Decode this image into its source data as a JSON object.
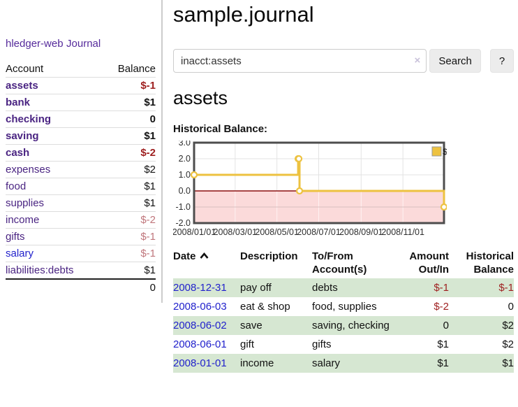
{
  "app": {
    "brand": "hledger-web",
    "nav_journal": "Journal"
  },
  "sidebar": {
    "accounts_header": {
      "account": "Account",
      "balance": "Balance"
    },
    "accounts": [
      {
        "name": "assets",
        "level": 0,
        "bold": true,
        "balance": "$-1",
        "tone": "neg"
      },
      {
        "name": "bank",
        "level": 1,
        "bold": true,
        "balance": "$1",
        "tone": ""
      },
      {
        "name": "checking",
        "level": 2,
        "bold": true,
        "balance": "0",
        "tone": ""
      },
      {
        "name": "saving",
        "level": 2,
        "bold": true,
        "balance": "$1",
        "tone": ""
      },
      {
        "name": "cash",
        "level": 1,
        "bold": true,
        "balance": "$-2",
        "tone": "neg"
      },
      {
        "name": "expenses",
        "level": 0,
        "bold": false,
        "balance": "$2",
        "tone": ""
      },
      {
        "name": "food",
        "level": 1,
        "bold": false,
        "balance": "$1",
        "tone": ""
      },
      {
        "name": "supplies",
        "level": 1,
        "bold": false,
        "balance": "$1",
        "tone": ""
      },
      {
        "name": "income",
        "level": 0,
        "bold": false,
        "balance": "$-2",
        "tone": "negsoft"
      },
      {
        "name": "gifts",
        "level": 1,
        "bold": false,
        "balance": "$-1",
        "tone": "negsoft"
      },
      {
        "name": "salary",
        "level": 1,
        "bold": false,
        "balance": "$-1",
        "tone": "negsoft",
        "link": "blue"
      },
      {
        "name": "liabilities:debts",
        "level": 0,
        "bold": false,
        "balance": "$1",
        "tone": ""
      }
    ],
    "total": "0"
  },
  "header": {
    "title": "sample.journal"
  },
  "search": {
    "value": "inacct:assets",
    "clear_icon": "×",
    "button": "Search",
    "help": "?"
  },
  "account_page": {
    "title": "assets",
    "chart_label": "Historical Balance:"
  },
  "chart_data": {
    "type": "line",
    "step": "after",
    "title": "Historical Balance",
    "series": [
      {
        "name": "$",
        "color": "#edc240",
        "points": [
          [
            "2008-01-01",
            1
          ],
          [
            "2008-06-01",
            2
          ],
          [
            "2008-06-02",
            2
          ],
          [
            "2008-06-03",
            0
          ],
          [
            "2008-12-31",
            -1
          ]
        ]
      }
    ],
    "x_min": "2008-01-01",
    "x_max": "2008-12-31",
    "x_ticks": [
      "2008/01/01",
      "2008/03/01",
      "2008/05/01",
      "2008/07/01",
      "2008/09/01",
      "2008/11/01"
    ],
    "y_ticks": [
      "3.0",
      "2.0",
      "1.0",
      "0.0",
      "-1.0",
      "-2.0"
    ],
    "ylim": [
      -2,
      3
    ],
    "grid": true,
    "negative_fill": "#fbdada",
    "zero_line_color": "#8b1010",
    "legend": {
      "label": "$",
      "position": "top-right"
    }
  },
  "register": {
    "headers": [
      "Date",
      "Description",
      "To/From Account(s)",
      "Amount Out/In",
      "Historical Balance"
    ],
    "rows": [
      {
        "date": "2008-12-31",
        "description": "pay off",
        "accounts": "debts",
        "amount": "$-1",
        "amount_tone": "neg",
        "balance": "$-1",
        "balance_tone": "neg"
      },
      {
        "date": "2008-06-03",
        "description": "eat & shop",
        "accounts": "food, supplies",
        "amount": "$-2",
        "amount_tone": "neg",
        "balance": "0",
        "balance_tone": ""
      },
      {
        "date": "2008-06-02",
        "description": "save",
        "accounts": "saving, checking",
        "amount": "0",
        "amount_tone": "",
        "balance": "$2",
        "balance_tone": ""
      },
      {
        "date": "2008-06-01",
        "description": "gift",
        "accounts": "gifts",
        "amount": "$1",
        "amount_tone": "",
        "balance": "$2",
        "balance_tone": ""
      },
      {
        "date": "2008-01-01",
        "description": "income",
        "accounts": "salary",
        "amount": "$1",
        "amount_tone": "",
        "balance": "$1",
        "balance_tone": ""
      }
    ]
  }
}
